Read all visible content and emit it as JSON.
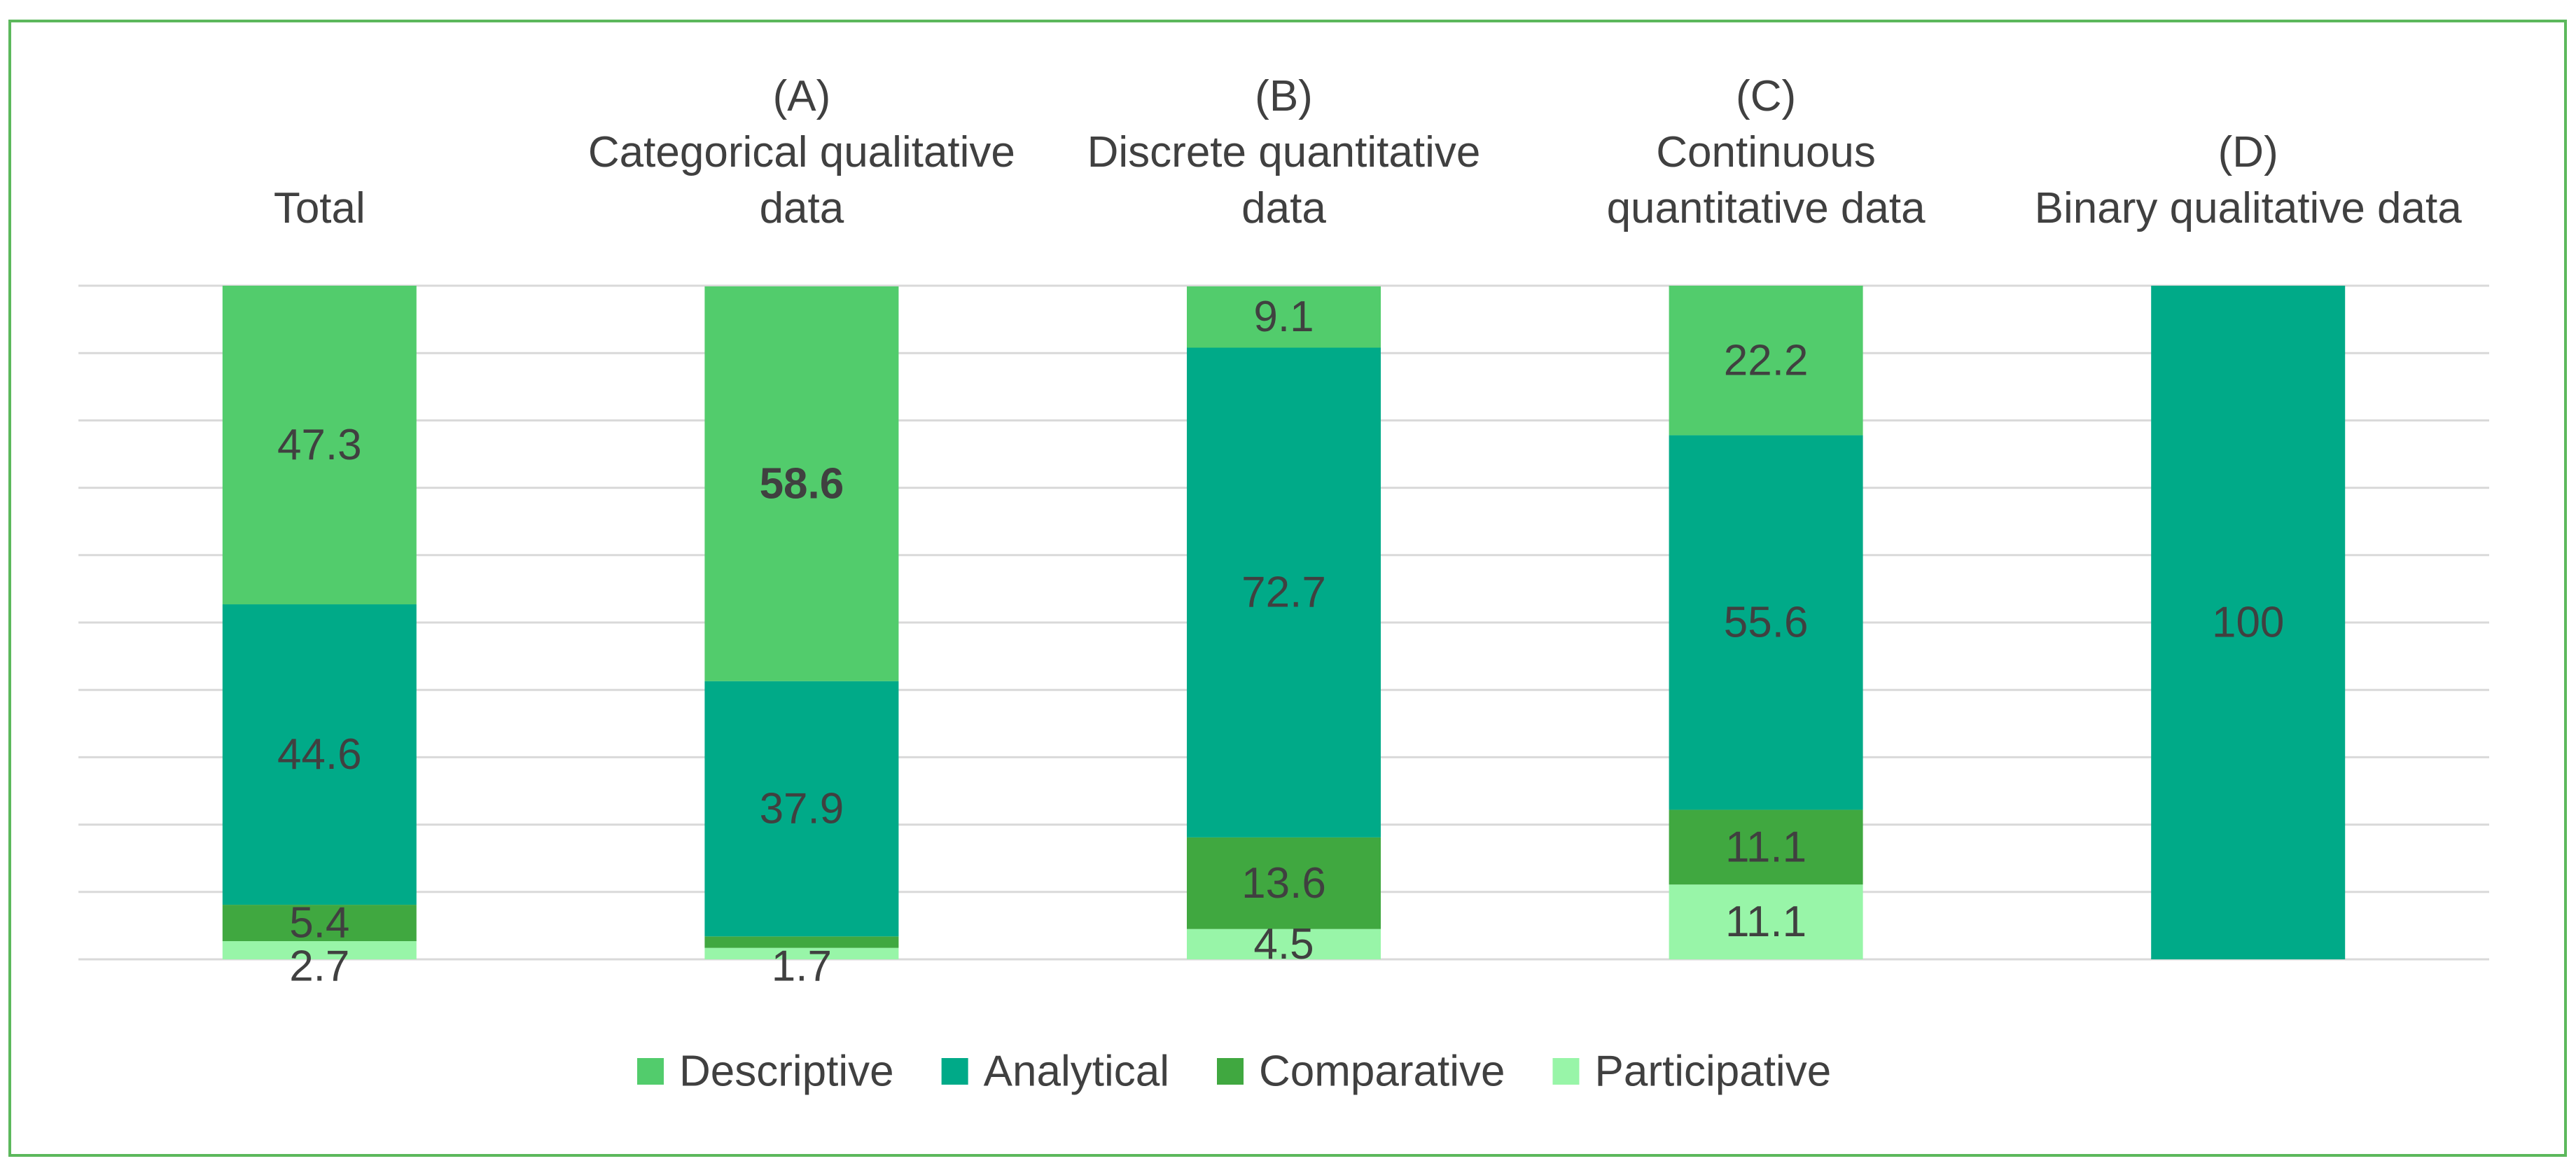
{
  "chart_data": {
    "type": "stacked-bar",
    "categories": [
      [
        "Total"
      ],
      [
        "(A)",
        "Categorical qualitative",
        "data"
      ],
      [
        "(B)",
        "Discrete quantitative",
        "data"
      ],
      [
        "(C)",
        "Continuous",
        "quantitative data"
      ],
      [
        "(D)",
        "Binary qualitative data"
      ]
    ],
    "series": [
      {
        "name": "Participative",
        "color": "#98f5a8",
        "values": [
          2.7,
          1.7,
          4.5,
          11.1,
          0
        ]
      },
      {
        "name": "Comparative",
        "color": "#40a840",
        "values": [
          5.4,
          1.7,
          13.6,
          11.1,
          0
        ]
      },
      {
        "name": "Analytical",
        "color": "#00aa88",
        "values": [
          44.6,
          37.9,
          72.7,
          55.6,
          100
        ]
      },
      {
        "name": "Descriptive",
        "color": "#52cc6c",
        "values": [
          47.3,
          58.6,
          9.1,
          22.2,
          0
        ]
      }
    ],
    "data_labels": [
      [
        {
          "series": "Descriptive",
          "text": "47.3"
        },
        {
          "series": "Analytical",
          "text": "44.6"
        },
        {
          "series": "Comparative",
          "text": "5.4"
        },
        {
          "series": "Participative",
          "text": "2.7"
        }
      ],
      [
        {
          "series": "Descriptive",
          "text": "58.6",
          "color": "#ff0000"
        },
        {
          "series": "Analytical",
          "text": "37.9"
        },
        {
          "series": "Participative",
          "text": "1.7"
        }
      ],
      [
        {
          "series": "Descriptive",
          "text": "9.1"
        },
        {
          "series": "Analytical",
          "text": "72.7"
        },
        {
          "series": "Comparative",
          "text": "13.6"
        },
        {
          "series": "Participative",
          "text": "4.5"
        }
      ],
      [
        {
          "series": "Descriptive",
          "text": "22.2"
        },
        {
          "series": "Analytical",
          "text": "55.6"
        },
        {
          "series": "Comparative",
          "text": "11.1"
        },
        {
          "series": "Participative",
          "text": "11.1"
        }
      ],
      [
        {
          "series": "Analytical",
          "text": "100"
        }
      ]
    ],
    "legend_order": [
      "Descriptive",
      "Analytical",
      "Comparative",
      "Participative"
    ],
    "legend_position": "bottom",
    "ylim": [
      0,
      100
    ],
    "gridlines": true,
    "border_color": "#5cb85c",
    "gridline_color": "#d9d9d9",
    "label_color": "#404040"
  }
}
